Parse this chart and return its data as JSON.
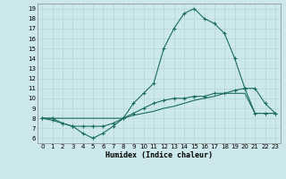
{
  "title": "",
  "xlabel": "Humidex (Indice chaleur)",
  "ylabel": "",
  "bg_color": "#cce8ec",
  "line_color": "#1a6b60",
  "grid_color": "#b8d8dc",
  "xlim": [
    -0.5,
    23.5
  ],
  "ylim": [
    5.5,
    19.5
  ],
  "yticks": [
    6,
    7,
    8,
    9,
    10,
    11,
    12,
    13,
    14,
    15,
    16,
    17,
    18,
    19
  ],
  "xticks": [
    0,
    1,
    2,
    3,
    4,
    5,
    6,
    7,
    8,
    9,
    10,
    11,
    12,
    13,
    14,
    15,
    16,
    17,
    18,
    19,
    20,
    21,
    22,
    23
  ],
  "line1_x": [
    0,
    1,
    2,
    3,
    4,
    5,
    6,
    7,
    8,
    9,
    10,
    11,
    12,
    13,
    14,
    15,
    16,
    17,
    18,
    19,
    20,
    21,
    22,
    23
  ],
  "line1_y": [
    8,
    7.8,
    7.5,
    7.2,
    6.5,
    6.0,
    6.5,
    7.2,
    8.0,
    9.5,
    10.5,
    11.5,
    15,
    17,
    18.5,
    19,
    18,
    17.5,
    16.5,
    14,
    11,
    11,
    9.5,
    8.5
  ],
  "line2_x": [
    0,
    1,
    2,
    3,
    4,
    5,
    6,
    7,
    8,
    9,
    10,
    11,
    12,
    13,
    14,
    15,
    16,
    17,
    18,
    19,
    20,
    21,
    22,
    23
  ],
  "line2_y": [
    8,
    8,
    8,
    8,
    8,
    8,
    8,
    8,
    8,
    8.3,
    8.5,
    8.7,
    9.0,
    9.2,
    9.5,
    9.8,
    10.0,
    10.2,
    10.5,
    10.5,
    10.5,
    8.5,
    8.5,
    8.5
  ],
  "line3_x": [
    0,
    1,
    2,
    3,
    4,
    5,
    6,
    7,
    8,
    9,
    10,
    11,
    12,
    13,
    14,
    15,
    16,
    17,
    18,
    19,
    20,
    21,
    22,
    23
  ],
  "line3_y": [
    8,
    8,
    7.5,
    7.2,
    7.2,
    7.2,
    7.2,
    7.5,
    8,
    8.5,
    9,
    9.5,
    9.8,
    10,
    10,
    10.2,
    10.2,
    10.5,
    10.5,
    10.8,
    11,
    8.5,
    8.5,
    8.5
  ]
}
